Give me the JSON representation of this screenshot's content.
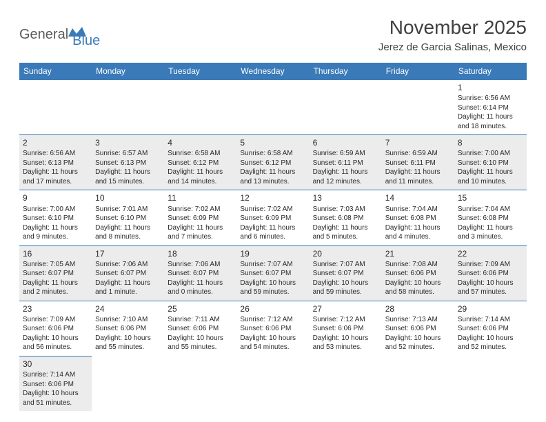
{
  "logo": {
    "part1": "General",
    "part2": "Blue"
  },
  "title": "November 2025",
  "location": "Jerez de Garcia Salinas, Mexico",
  "colors": {
    "header_bg": "#3a7ab8",
    "header_text": "#ffffff",
    "gray_bg": "#ececec",
    "border": "#3a7ab8",
    "text": "#2a2a2a",
    "logo_gray": "#5a5a5a",
    "logo_blue": "#3a7ab8"
  },
  "weekdays": [
    "Sunday",
    "Monday",
    "Tuesday",
    "Wednesday",
    "Thursday",
    "Friday",
    "Saturday"
  ],
  "weeks": [
    [
      {
        "n": "",
        "sr": "",
        "ss": "",
        "dl": "",
        "empty": true
      },
      {
        "n": "",
        "sr": "",
        "ss": "",
        "dl": "",
        "empty": true
      },
      {
        "n": "",
        "sr": "",
        "ss": "",
        "dl": "",
        "empty": true
      },
      {
        "n": "",
        "sr": "",
        "ss": "",
        "dl": "",
        "empty": true
      },
      {
        "n": "",
        "sr": "",
        "ss": "",
        "dl": "",
        "empty": true
      },
      {
        "n": "",
        "sr": "",
        "ss": "",
        "dl": "",
        "empty": true
      },
      {
        "n": "1",
        "sr": "Sunrise: 6:56 AM",
        "ss": "Sunset: 6:14 PM",
        "dl1": "Daylight: 11 hours",
        "dl2": "and 18 minutes."
      }
    ],
    [
      {
        "n": "2",
        "sr": "Sunrise: 6:56 AM",
        "ss": "Sunset: 6:13 PM",
        "dl1": "Daylight: 11 hours",
        "dl2": "and 17 minutes.",
        "gray": true
      },
      {
        "n": "3",
        "sr": "Sunrise: 6:57 AM",
        "ss": "Sunset: 6:13 PM",
        "dl1": "Daylight: 11 hours",
        "dl2": "and 15 minutes.",
        "gray": true
      },
      {
        "n": "4",
        "sr": "Sunrise: 6:58 AM",
        "ss": "Sunset: 6:12 PM",
        "dl1": "Daylight: 11 hours",
        "dl2": "and 14 minutes.",
        "gray": true
      },
      {
        "n": "5",
        "sr": "Sunrise: 6:58 AM",
        "ss": "Sunset: 6:12 PM",
        "dl1": "Daylight: 11 hours",
        "dl2": "and 13 minutes.",
        "gray": true
      },
      {
        "n": "6",
        "sr": "Sunrise: 6:59 AM",
        "ss": "Sunset: 6:11 PM",
        "dl1": "Daylight: 11 hours",
        "dl2": "and 12 minutes.",
        "gray": true
      },
      {
        "n": "7",
        "sr": "Sunrise: 6:59 AM",
        "ss": "Sunset: 6:11 PM",
        "dl1": "Daylight: 11 hours",
        "dl2": "and 11 minutes.",
        "gray": true
      },
      {
        "n": "8",
        "sr": "Sunrise: 7:00 AM",
        "ss": "Sunset: 6:10 PM",
        "dl1": "Daylight: 11 hours",
        "dl2": "and 10 minutes.",
        "gray": true
      }
    ],
    [
      {
        "n": "9",
        "sr": "Sunrise: 7:00 AM",
        "ss": "Sunset: 6:10 PM",
        "dl1": "Daylight: 11 hours",
        "dl2": "and 9 minutes."
      },
      {
        "n": "10",
        "sr": "Sunrise: 7:01 AM",
        "ss": "Sunset: 6:10 PM",
        "dl1": "Daylight: 11 hours",
        "dl2": "and 8 minutes."
      },
      {
        "n": "11",
        "sr": "Sunrise: 7:02 AM",
        "ss": "Sunset: 6:09 PM",
        "dl1": "Daylight: 11 hours",
        "dl2": "and 7 minutes."
      },
      {
        "n": "12",
        "sr": "Sunrise: 7:02 AM",
        "ss": "Sunset: 6:09 PM",
        "dl1": "Daylight: 11 hours",
        "dl2": "and 6 minutes."
      },
      {
        "n": "13",
        "sr": "Sunrise: 7:03 AM",
        "ss": "Sunset: 6:08 PM",
        "dl1": "Daylight: 11 hours",
        "dl2": "and 5 minutes."
      },
      {
        "n": "14",
        "sr": "Sunrise: 7:04 AM",
        "ss": "Sunset: 6:08 PM",
        "dl1": "Daylight: 11 hours",
        "dl2": "and 4 minutes."
      },
      {
        "n": "15",
        "sr": "Sunrise: 7:04 AM",
        "ss": "Sunset: 6:08 PM",
        "dl1": "Daylight: 11 hours",
        "dl2": "and 3 minutes."
      }
    ],
    [
      {
        "n": "16",
        "sr": "Sunrise: 7:05 AM",
        "ss": "Sunset: 6:07 PM",
        "dl1": "Daylight: 11 hours",
        "dl2": "and 2 minutes.",
        "gray": true
      },
      {
        "n": "17",
        "sr": "Sunrise: 7:06 AM",
        "ss": "Sunset: 6:07 PM",
        "dl1": "Daylight: 11 hours",
        "dl2": "and 1 minute.",
        "gray": true
      },
      {
        "n": "18",
        "sr": "Sunrise: 7:06 AM",
        "ss": "Sunset: 6:07 PM",
        "dl1": "Daylight: 11 hours",
        "dl2": "and 0 minutes.",
        "gray": true
      },
      {
        "n": "19",
        "sr": "Sunrise: 7:07 AM",
        "ss": "Sunset: 6:07 PM",
        "dl1": "Daylight: 10 hours",
        "dl2": "and 59 minutes.",
        "gray": true
      },
      {
        "n": "20",
        "sr": "Sunrise: 7:07 AM",
        "ss": "Sunset: 6:07 PM",
        "dl1": "Daylight: 10 hours",
        "dl2": "and 59 minutes.",
        "gray": true
      },
      {
        "n": "21",
        "sr": "Sunrise: 7:08 AM",
        "ss": "Sunset: 6:06 PM",
        "dl1": "Daylight: 10 hours",
        "dl2": "and 58 minutes.",
        "gray": true
      },
      {
        "n": "22",
        "sr": "Sunrise: 7:09 AM",
        "ss": "Sunset: 6:06 PM",
        "dl1": "Daylight: 10 hours",
        "dl2": "and 57 minutes.",
        "gray": true
      }
    ],
    [
      {
        "n": "23",
        "sr": "Sunrise: 7:09 AM",
        "ss": "Sunset: 6:06 PM",
        "dl1": "Daylight: 10 hours",
        "dl2": "and 56 minutes."
      },
      {
        "n": "24",
        "sr": "Sunrise: 7:10 AM",
        "ss": "Sunset: 6:06 PM",
        "dl1": "Daylight: 10 hours",
        "dl2": "and 55 minutes."
      },
      {
        "n": "25",
        "sr": "Sunrise: 7:11 AM",
        "ss": "Sunset: 6:06 PM",
        "dl1": "Daylight: 10 hours",
        "dl2": "and 55 minutes."
      },
      {
        "n": "26",
        "sr": "Sunrise: 7:12 AM",
        "ss": "Sunset: 6:06 PM",
        "dl1": "Daylight: 10 hours",
        "dl2": "and 54 minutes."
      },
      {
        "n": "27",
        "sr": "Sunrise: 7:12 AM",
        "ss": "Sunset: 6:06 PM",
        "dl1": "Daylight: 10 hours",
        "dl2": "and 53 minutes."
      },
      {
        "n": "28",
        "sr": "Sunrise: 7:13 AM",
        "ss": "Sunset: 6:06 PM",
        "dl1": "Daylight: 10 hours",
        "dl2": "and 52 minutes."
      },
      {
        "n": "29",
        "sr": "Sunrise: 7:14 AM",
        "ss": "Sunset: 6:06 PM",
        "dl1": "Daylight: 10 hours",
        "dl2": "and 52 minutes."
      }
    ],
    [
      {
        "n": "30",
        "sr": "Sunrise: 7:14 AM",
        "ss": "Sunset: 6:06 PM",
        "dl1": "Daylight: 10 hours",
        "dl2": "and 51 minutes.",
        "gray": true
      },
      {
        "n": "",
        "empty": true
      },
      {
        "n": "",
        "empty": true
      },
      {
        "n": "",
        "empty": true
      },
      {
        "n": "",
        "empty": true
      },
      {
        "n": "",
        "empty": true
      },
      {
        "n": "",
        "empty": true
      }
    ]
  ]
}
